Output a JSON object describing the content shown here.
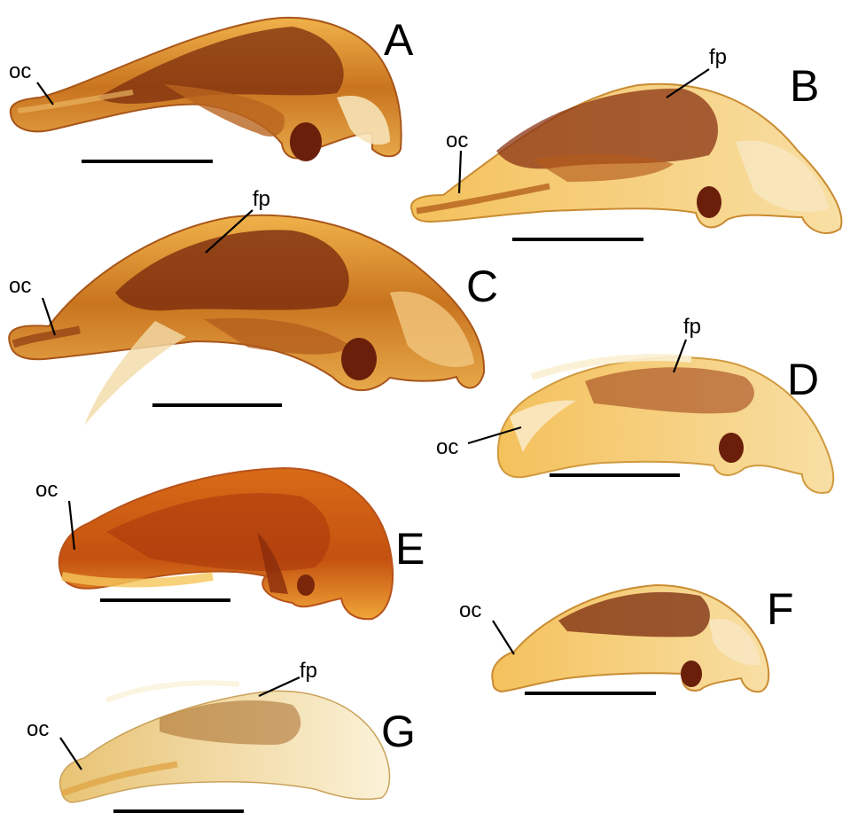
{
  "figure": {
    "background": "#ffffff",
    "colors": {
      "specimen_light": "#f4d58a",
      "specimen_mid": "#d9962e",
      "specimen_dark": "#8c3a12",
      "specimen_darkest": "#5a1e0a",
      "translucent_light": "#fbeecb",
      "line": "#000000"
    }
  },
  "panels": [
    {
      "letter": "A",
      "labels": [
        "oc"
      ]
    },
    {
      "letter": "B",
      "labels": [
        "oc",
        "fp"
      ]
    },
    {
      "letter": "C",
      "labels": [
        "oc",
        "fp"
      ]
    },
    {
      "letter": "D",
      "labels": [
        "oc",
        "fp"
      ]
    },
    {
      "letter": "E",
      "labels": [
        "oc"
      ]
    },
    {
      "letter": "F",
      "labels": [
        "oc"
      ]
    },
    {
      "letter": "G",
      "labels": [
        "oc",
        "fp"
      ]
    }
  ]
}
